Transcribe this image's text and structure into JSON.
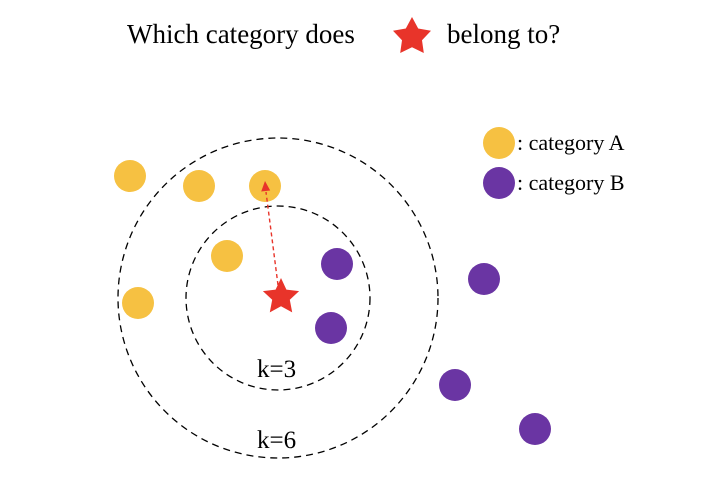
{
  "title": {
    "before": "Which category does",
    "after": "belong to?"
  },
  "legend": {
    "category_a": ": category A",
    "category_b": ": category B"
  },
  "rings": {
    "inner_label": "k=3",
    "outer_label": "k=6"
  },
  "colors": {
    "category_a": "#f6c142",
    "category_b": "#6a35a3",
    "query_star": "#e8342a",
    "ring": "#000000"
  },
  "icons": {
    "query": "star-icon",
    "category_a": "yellow-circle-icon",
    "category_b": "purple-circle-icon"
  }
}
